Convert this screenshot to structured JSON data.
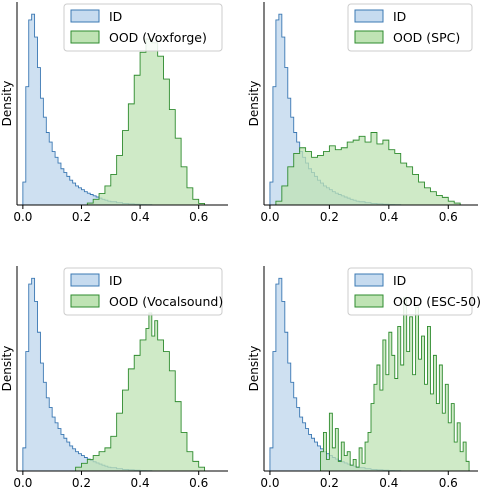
{
  "colors": {
    "id_fill": "#c6dbef",
    "id_line": "#3b78b3",
    "ood_fill": "#bfe3b4",
    "ood_line": "#2e8b2e",
    "axis": "#000000"
  },
  "chart_data": [
    {
      "type": "area",
      "title": "",
      "xlabel": "",
      "ylabel": "Density",
      "xlim": [
        -0.02,
        0.7
      ],
      "ylim": [
        0,
        1
      ],
      "xticks": [
        0.0,
        0.2,
        0.4,
        0.6
      ],
      "xtick_labels": [
        "0.0",
        "0.2",
        "0.4",
        "0.6"
      ],
      "legend_position": "top-right",
      "grid": false,
      "series": [
        {
          "name": "ID",
          "x": [
            0.0,
            0.01,
            0.02,
            0.03,
            0.04,
            0.05,
            0.06,
            0.07,
            0.08,
            0.09,
            0.1,
            0.11,
            0.12,
            0.13,
            0.14,
            0.15,
            0.16,
            0.17,
            0.18,
            0.19,
            0.2,
            0.21,
            0.22,
            0.23,
            0.24,
            0.25,
            0.26,
            0.27,
            0.28,
            0.29,
            0.3,
            0.32,
            0.34,
            0.36,
            0.38,
            0.4,
            0.42,
            0.44
          ],
          "values": [
            0.12,
            0.62,
            0.97,
            1.0,
            0.88,
            0.72,
            0.56,
            0.46,
            0.38,
            0.33,
            0.28,
            0.25,
            0.22,
            0.19,
            0.17,
            0.15,
            0.13,
            0.115,
            0.1,
            0.09,
            0.08,
            0.07,
            0.062,
            0.055,
            0.048,
            0.042,
            0.036,
            0.03,
            0.025,
            0.02,
            0.017,
            0.012,
            0.008,
            0.006,
            0.004,
            0.003,
            0.002,
            0.0
          ]
        },
        {
          "name": "OOD (Voxforge)",
          "x": [
            0.2,
            0.22,
            0.24,
            0.26,
            0.28,
            0.3,
            0.32,
            0.34,
            0.36,
            0.38,
            0.4,
            0.42,
            0.44,
            0.46,
            0.48,
            0.5,
            0.52,
            0.54,
            0.56,
            0.58,
            0.6,
            0.62
          ],
          "values": [
            0.0,
            0.01,
            0.03,
            0.06,
            0.1,
            0.16,
            0.26,
            0.39,
            0.53,
            0.68,
            0.8,
            0.87,
            0.85,
            0.78,
            0.66,
            0.5,
            0.35,
            0.2,
            0.09,
            0.03,
            0.008,
            0.0
          ]
        }
      ]
    },
    {
      "type": "area",
      "title": "",
      "xlabel": "",
      "ylabel": "Density",
      "xlim": [
        -0.02,
        0.7
      ],
      "ylim": [
        0,
        1
      ],
      "xticks": [
        0.0,
        0.2,
        0.4,
        0.6
      ],
      "xtick_labels": [
        "0.0",
        "0.2",
        "0.4",
        "0.6"
      ],
      "legend_position": "top-right",
      "grid": false,
      "series": [
        {
          "name": "ID",
          "x": [
            0.0,
            0.01,
            0.02,
            0.03,
            0.04,
            0.05,
            0.06,
            0.07,
            0.08,
            0.09,
            0.1,
            0.11,
            0.12,
            0.13,
            0.14,
            0.15,
            0.16,
            0.17,
            0.18,
            0.19,
            0.2,
            0.21,
            0.22,
            0.23,
            0.24,
            0.25,
            0.26,
            0.27,
            0.28,
            0.29,
            0.3,
            0.32,
            0.34,
            0.36,
            0.38,
            0.4,
            0.42,
            0.44
          ],
          "values": [
            0.12,
            0.62,
            0.97,
            1.0,
            0.88,
            0.72,
            0.56,
            0.46,
            0.38,
            0.33,
            0.28,
            0.25,
            0.22,
            0.19,
            0.17,
            0.15,
            0.13,
            0.115,
            0.1,
            0.09,
            0.08,
            0.07,
            0.062,
            0.055,
            0.048,
            0.042,
            0.036,
            0.03,
            0.025,
            0.02,
            0.017,
            0.012,
            0.008,
            0.006,
            0.004,
            0.003,
            0.002,
            0.0
          ]
        },
        {
          "name": "OOD (SPC)",
          "x": [
            0.0,
            0.02,
            0.04,
            0.06,
            0.08,
            0.1,
            0.12,
            0.14,
            0.16,
            0.18,
            0.2,
            0.22,
            0.24,
            0.26,
            0.28,
            0.3,
            0.32,
            0.34,
            0.36,
            0.38,
            0.4,
            0.42,
            0.44,
            0.46,
            0.48,
            0.5,
            0.52,
            0.54,
            0.56,
            0.58,
            0.6,
            0.62,
            0.64
          ],
          "values": [
            0.0,
            0.02,
            0.1,
            0.2,
            0.27,
            0.3,
            0.28,
            0.25,
            0.26,
            0.28,
            0.31,
            0.29,
            0.3,
            0.33,
            0.34,
            0.36,
            0.33,
            0.38,
            0.32,
            0.34,
            0.29,
            0.27,
            0.22,
            0.2,
            0.16,
            0.12,
            0.09,
            0.07,
            0.05,
            0.04,
            0.02,
            0.01,
            0.0
          ]
        }
      ]
    },
    {
      "type": "area",
      "title": "",
      "xlabel": "",
      "ylabel": "Density",
      "xlim": [
        -0.02,
        0.7
      ],
      "ylim": [
        0,
        1
      ],
      "xticks": [
        0.0,
        0.2,
        0.4,
        0.6
      ],
      "xtick_labels": [
        "0.0",
        "0.2",
        "0.4",
        "0.6"
      ],
      "legend_position": "top-right",
      "grid": false,
      "series": [
        {
          "name": "ID",
          "x": [
            0.0,
            0.01,
            0.02,
            0.03,
            0.04,
            0.05,
            0.06,
            0.07,
            0.08,
            0.09,
            0.1,
            0.11,
            0.12,
            0.13,
            0.14,
            0.15,
            0.16,
            0.17,
            0.18,
            0.19,
            0.2,
            0.21,
            0.22,
            0.23,
            0.24,
            0.25,
            0.26,
            0.27,
            0.28,
            0.29,
            0.3,
            0.32,
            0.34,
            0.36,
            0.38,
            0.4,
            0.42,
            0.44
          ],
          "values": [
            0.12,
            0.62,
            0.97,
            1.0,
            0.88,
            0.72,
            0.56,
            0.46,
            0.38,
            0.33,
            0.28,
            0.25,
            0.22,
            0.19,
            0.17,
            0.15,
            0.13,
            0.115,
            0.1,
            0.09,
            0.08,
            0.07,
            0.062,
            0.055,
            0.048,
            0.042,
            0.036,
            0.03,
            0.025,
            0.02,
            0.017,
            0.012,
            0.008,
            0.006,
            0.004,
            0.003,
            0.002,
            0.0
          ]
        },
        {
          "name": "OOD (Vocalsound)",
          "x": [
            0.16,
            0.18,
            0.2,
            0.22,
            0.24,
            0.26,
            0.28,
            0.3,
            0.32,
            0.34,
            0.36,
            0.38,
            0.4,
            0.42,
            0.43,
            0.44,
            0.45,
            0.46,
            0.48,
            0.5,
            0.52,
            0.54,
            0.56,
            0.58,
            0.6,
            0.62
          ],
          "values": [
            0.0,
            0.02,
            0.04,
            0.06,
            0.08,
            0.1,
            0.12,
            0.18,
            0.3,
            0.42,
            0.53,
            0.6,
            0.68,
            0.74,
            0.82,
            0.7,
            0.78,
            0.68,
            0.62,
            0.52,
            0.36,
            0.2,
            0.1,
            0.05,
            0.02,
            0.0
          ]
        }
      ]
    },
    {
      "type": "area",
      "title": "",
      "xlabel": "",
      "ylabel": "Density",
      "xlim": [
        -0.02,
        0.7
      ],
      "ylim": [
        0,
        1
      ],
      "xticks": [
        0.0,
        0.2,
        0.4,
        0.6
      ],
      "xtick_labels": [
        "0.0",
        "0.2",
        "0.4",
        "0.6"
      ],
      "legend_position": "top-right",
      "grid": false,
      "series": [
        {
          "name": "ID",
          "x": [
            0.0,
            0.01,
            0.02,
            0.03,
            0.04,
            0.05,
            0.06,
            0.07,
            0.08,
            0.09,
            0.1,
            0.11,
            0.12,
            0.13,
            0.14,
            0.15,
            0.16,
            0.17,
            0.18,
            0.19,
            0.2,
            0.21,
            0.22,
            0.23,
            0.24,
            0.25,
            0.26,
            0.27,
            0.28,
            0.29,
            0.3,
            0.32,
            0.34,
            0.36,
            0.38,
            0.4,
            0.42,
            0.44
          ],
          "values": [
            0.12,
            0.62,
            0.97,
            1.0,
            0.88,
            0.72,
            0.56,
            0.46,
            0.38,
            0.33,
            0.28,
            0.25,
            0.22,
            0.19,
            0.17,
            0.15,
            0.13,
            0.115,
            0.1,
            0.09,
            0.08,
            0.07,
            0.062,
            0.055,
            0.048,
            0.042,
            0.036,
            0.03,
            0.025,
            0.02,
            0.017,
            0.012,
            0.008,
            0.006,
            0.004,
            0.003,
            0.002,
            0.0
          ]
        },
        {
          "name": "OOD (ESC-50)",
          "x": [
            0.16,
            0.17,
            0.18,
            0.19,
            0.2,
            0.21,
            0.22,
            0.23,
            0.24,
            0.25,
            0.26,
            0.27,
            0.28,
            0.29,
            0.3,
            0.31,
            0.32,
            0.33,
            0.34,
            0.35,
            0.36,
            0.37,
            0.38,
            0.39,
            0.4,
            0.41,
            0.42,
            0.43,
            0.44,
            0.45,
            0.46,
            0.47,
            0.48,
            0.49,
            0.5,
            0.51,
            0.52,
            0.53,
            0.54,
            0.55,
            0.56,
            0.57,
            0.58,
            0.59,
            0.6,
            0.61,
            0.62,
            0.63,
            0.64,
            0.65,
            0.66,
            0.67
          ],
          "values": [
            0.0,
            0.1,
            0.2,
            0.06,
            0.3,
            0.12,
            0.22,
            0.05,
            0.15,
            0.08,
            0.1,
            0.03,
            0.06,
            0.02,
            0.12,
            0.04,
            0.15,
            0.2,
            0.35,
            0.45,
            0.55,
            0.42,
            0.68,
            0.5,
            0.72,
            0.6,
            0.48,
            0.75,
            0.55,
            0.9,
            0.62,
            0.8,
            0.5,
            0.85,
            0.58,
            0.7,
            0.45,
            0.75,
            0.4,
            0.6,
            0.35,
            0.55,
            0.3,
            0.45,
            0.25,
            0.35,
            0.15,
            0.25,
            0.1,
            0.15,
            0.05,
            0.0
          ]
        }
      ]
    }
  ]
}
